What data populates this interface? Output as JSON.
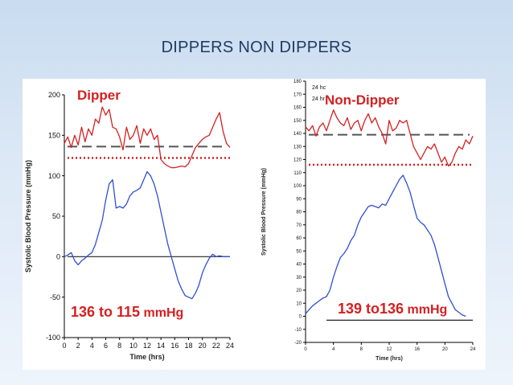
{
  "slide": {
    "title": "DIPPERS NON DIPPERS"
  },
  "colors": {
    "systolic": "#d42020",
    "fall": "#2f4fd0",
    "dash": "#555555",
    "dotted": "#d42020",
    "baseline": "#222222"
  },
  "chart_data": [
    {
      "type": "line",
      "title": "Dipper",
      "annotation_primary": "136 to 115",
      "annotation_unit": "mmHg",
      "xlabel": "Time (hrs)",
      "ylabel": "Systolic Blood Pressure (mmHg)",
      "xlim": [
        0,
        24
      ],
      "ylim": [
        -100,
        200
      ],
      "xticks": [
        "0",
        "2",
        "4",
        "6",
        "8",
        "10",
        "12",
        "14",
        "16",
        "18",
        "20",
        "22",
        "24"
      ],
      "yticks": [
        "-100",
        "-50",
        "0",
        "50",
        "100",
        "150",
        "200"
      ],
      "grid": false,
      "reference_lines": [
        {
          "style": "dashed",
          "y": 136
        },
        {
          "style": "dotted",
          "y": 122
        },
        {
          "style": "solid",
          "y": 0
        }
      ],
      "series": [
        {
          "x": [
            0,
            0.5,
            1,
            1.5,
            2,
            2.5,
            3,
            3.5,
            4,
            4.5,
            5,
            5.5,
            6,
            6.5,
            7,
            7.5,
            8,
            8.5,
            9,
            9.5,
            10,
            10.5,
            11,
            11.5,
            12,
            12.5,
            13,
            13.5,
            14,
            14.5,
            15,
            15.5,
            16,
            16.5,
            17,
            17.5,
            18,
            18.5,
            19,
            19.5,
            20,
            20.5,
            21,
            21.5,
            22,
            22.5,
            23,
            23.5,
            24
          ],
          "values": [
            140,
            148,
            135,
            150,
            138,
            160,
            142,
            158,
            150,
            170,
            165,
            185,
            175,
            182,
            160,
            158,
            148,
            132,
            160,
            145,
            150,
            162,
            140,
            158,
            150,
            158,
            145,
            150,
            120,
            115,
            112,
            110,
            110,
            111,
            112,
            111,
            115,
            125,
            135,
            140,
            145,
            148,
            150,
            160,
            170,
            178,
            155,
            140,
            135
          ]
        },
        {
          "x": [
            0,
            0.5,
            1,
            1.5,
            2,
            2.5,
            3,
            3.5,
            4,
            4.5,
            5,
            5.5,
            6,
            6.5,
            7,
            7.5,
            8,
            8.5,
            9,
            9.5,
            10,
            10.5,
            11,
            11.5,
            12,
            12.5,
            13,
            13.5,
            14,
            14.5,
            15,
            15.5,
            16,
            16.5,
            17,
            17.5,
            18,
            18.5,
            19,
            19.5,
            20,
            20.5,
            21,
            21.5,
            22,
            22.5,
            23,
            23.5,
            24
          ],
          "values": [
            0,
            2,
            5,
            -5,
            -10,
            -5,
            -2,
            2,
            5,
            15,
            30,
            45,
            70,
            90,
            95,
            60,
            62,
            60,
            65,
            75,
            80,
            82,
            85,
            95,
            105,
            100,
            90,
            75,
            55,
            35,
            15,
            0,
            -15,
            -30,
            -40,
            -48,
            -50,
            -52,
            -45,
            -35,
            -20,
            -10,
            -2,
            3,
            0,
            1,
            0,
            0,
            0
          ]
        }
      ]
    },
    {
      "type": "line",
      "title": "Non-Dipper",
      "annotation_primary": "139 to136",
      "annotation_unit": "mmHg",
      "legend_fragments": [
        "24 hc",
        "24 hr"
      ],
      "xlabel": "Time (hrs)",
      "ylabel": "Systolic Blood Pressure (mmHg)",
      "xlim": [
        0,
        24
      ],
      "ylim": [
        -20,
        180
      ],
      "xticks": [
        "0",
        "4",
        "8",
        "12",
        "16",
        "20",
        "24"
      ],
      "yticks": [
        "-20",
        "-10",
        "0",
        "10",
        "20",
        "30",
        "40",
        "50",
        "60",
        "70",
        "80",
        "90",
        "100",
        "110",
        "120",
        "130",
        "140",
        "150",
        "160",
        "170",
        "180"
      ],
      "grid": false,
      "reference_lines": [
        {
          "style": "dashed",
          "y": 139
        },
        {
          "style": "dotted",
          "y": 116
        },
        {
          "style": "solid",
          "y": -3,
          "x_from": 3
        }
      ],
      "series": [
        {
          "x": [
            0,
            0.5,
            1,
            1.5,
            2,
            2.5,
            3,
            3.5,
            4,
            4.5,
            5,
            5.5,
            6,
            6.5,
            7,
            7.5,
            8,
            8.5,
            9,
            9.5,
            10,
            10.5,
            11,
            11.5,
            12,
            12.5,
            13,
            13.5,
            14,
            14.5,
            15,
            15.5,
            16,
            16.5,
            17,
            17.5,
            18,
            18.5,
            19,
            19.5,
            20,
            20.5,
            21,
            21.5,
            22,
            22.5,
            23,
            23.5,
            24
          ],
          "values": [
            145,
            142,
            146,
            138,
            145,
            148,
            142,
            150,
            158,
            152,
            148,
            146,
            152,
            143,
            148,
            150,
            142,
            150,
            155,
            148,
            152,
            145,
            140,
            132,
            150,
            142,
            144,
            150,
            148,
            150,
            140,
            130,
            125,
            120,
            125,
            130,
            128,
            132,
            125,
            118,
            122,
            115,
            118,
            125,
            130,
            128,
            135,
            132,
            138
          ]
        },
        {
          "x": [
            0,
            0.5,
            1,
            1.5,
            2,
            2.5,
            3,
            3.5,
            4,
            4.5,
            5,
            5.5,
            6,
            6.5,
            7,
            7.5,
            8,
            8.5,
            9,
            9.5,
            10,
            10.5,
            11,
            11.5,
            12,
            12.5,
            13,
            13.5,
            14,
            14.5,
            15,
            15.5,
            16,
            16.5,
            17,
            17.5,
            18,
            18.5,
            19,
            19.5,
            20,
            20.5,
            21,
            21.5,
            22,
            22.5,
            23
          ],
          "values": [
            2,
            5,
            8,
            10,
            12,
            14,
            15,
            20,
            30,
            38,
            45,
            48,
            52,
            58,
            62,
            70,
            76,
            80,
            84,
            85,
            84,
            83,
            86,
            85,
            90,
            95,
            100,
            105,
            108,
            102,
            95,
            85,
            75,
            72,
            70,
            66,
            62,
            55,
            45,
            35,
            25,
            15,
            10,
            5,
            3,
            1,
            0
          ]
        }
      ]
    }
  ]
}
